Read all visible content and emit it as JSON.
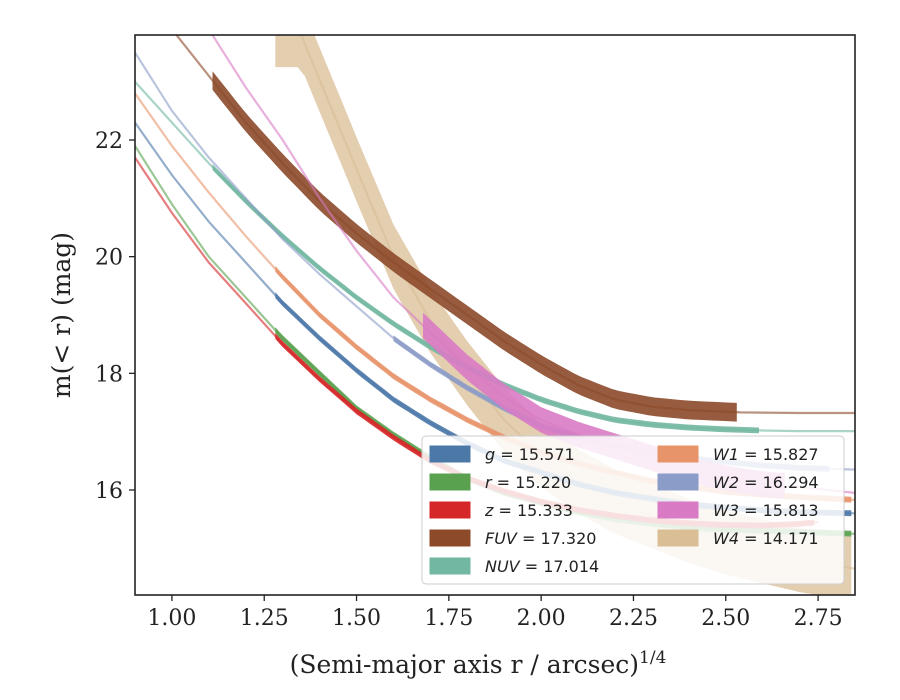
{
  "chart_data": {
    "type": "line",
    "xlabel": "(Semi-major axis r / arcsec)",
    "xlabel_superscript": "1/4",
    "ylabel": "m(< r) (mag)",
    "xlim": [
      0.9,
      2.85
    ],
    "ylim": [
      23.8,
      14.2
    ],
    "y_inverted": true,
    "x_ticks": [
      1.0,
      1.25,
      1.5,
      1.75,
      2.0,
      2.25,
      2.5,
      2.75
    ],
    "x_tick_labels": [
      "1.00",
      "1.25",
      "1.50",
      "1.75",
      "2.00",
      "2.25",
      "2.50",
      "2.75"
    ],
    "y_ticks": [
      16,
      18,
      20,
      22
    ],
    "y_tick_labels": [
      "16",
      "18",
      "20",
      "22"
    ],
    "grid": false,
    "legend_position": "lower-right",
    "series": [
      {
        "name": "g",
        "label_value": "= 15.571",
        "color": "#4c78a8",
        "line": [
          [
            0.9,
            22.3
          ],
          [
            1.0,
            21.4
          ],
          [
            1.1,
            20.6
          ],
          [
            1.2,
            19.9
          ],
          [
            1.3,
            19.2
          ],
          [
            1.4,
            18.6
          ],
          [
            1.5,
            18.05
          ],
          [
            1.6,
            17.55
          ],
          [
            1.7,
            17.15
          ],
          [
            1.8,
            16.8
          ],
          [
            1.9,
            16.5
          ],
          [
            2.0,
            16.3
          ],
          [
            2.1,
            16.1
          ],
          [
            2.2,
            15.95
          ],
          [
            2.3,
            15.85
          ],
          [
            2.4,
            15.75
          ],
          [
            2.5,
            15.7
          ],
          [
            2.6,
            15.65
          ],
          [
            2.7,
            15.62
          ],
          [
            2.85,
            15.6
          ]
        ],
        "band": [
          1.28,
          2.85
        ]
      },
      {
        "name": "r",
        "label_value": "= 15.220",
        "color": "#59a14f",
        "line": [
          [
            0.9,
            21.9
          ],
          [
            1.0,
            20.9
          ],
          [
            1.1,
            20.0
          ],
          [
            1.2,
            19.3
          ],
          [
            1.3,
            18.6
          ],
          [
            1.4,
            18.0
          ],
          [
            1.5,
            17.4
          ],
          [
            1.6,
            16.95
          ],
          [
            1.7,
            16.55
          ],
          [
            1.8,
            16.2
          ],
          [
            1.9,
            15.95
          ],
          [
            2.0,
            15.78
          ],
          [
            2.1,
            15.62
          ],
          [
            2.2,
            15.5
          ],
          [
            2.3,
            15.42
          ],
          [
            2.4,
            15.36
          ],
          [
            2.5,
            15.32
          ],
          [
            2.6,
            15.3
          ],
          [
            2.7,
            15.28
          ],
          [
            2.85,
            15.25
          ]
        ],
        "band": [
          1.28,
          2.85
        ]
      },
      {
        "name": "z",
        "label_value": "= 15.333",
        "color": "#d62728",
        "line": [
          [
            0.9,
            21.7
          ],
          [
            1.0,
            20.75
          ],
          [
            1.1,
            19.9
          ],
          [
            1.2,
            19.2
          ],
          [
            1.3,
            18.5
          ],
          [
            1.4,
            17.9
          ],
          [
            1.5,
            17.35
          ],
          [
            1.6,
            16.9
          ],
          [
            1.7,
            16.5
          ],
          [
            1.8,
            16.2
          ],
          [
            1.9,
            15.98
          ],
          [
            2.0,
            15.8
          ],
          [
            2.1,
            15.66
          ],
          [
            2.2,
            15.56
          ],
          [
            2.3,
            15.48
          ],
          [
            2.4,
            15.43
          ],
          [
            2.5,
            15.4
          ],
          [
            2.6,
            15.39
          ],
          [
            2.7,
            15.42
          ],
          [
            2.75,
            15.45
          ]
        ],
        "band": [
          1.28,
          2.75
        ]
      },
      {
        "name": "FUV",
        "label_value": "= 17.320",
        "color": "#8c4a2a",
        "line": [
          [
            1.0,
            23.9
          ],
          [
            1.1,
            23.1
          ],
          [
            1.2,
            22.3
          ],
          [
            1.3,
            21.6
          ],
          [
            1.4,
            20.95
          ],
          [
            1.5,
            20.4
          ],
          [
            1.6,
            19.9
          ],
          [
            1.7,
            19.45
          ],
          [
            1.8,
            19.0
          ],
          [
            1.9,
            18.55
          ],
          [
            2.0,
            18.15
          ],
          [
            2.1,
            17.8
          ],
          [
            2.2,
            17.55
          ],
          [
            2.3,
            17.43
          ],
          [
            2.4,
            17.37
          ],
          [
            2.54,
            17.33
          ],
          [
            2.7,
            17.32
          ],
          [
            2.85,
            17.32
          ]
        ],
        "band": [
          1.11,
          2.54
        ]
      },
      {
        "name": "NUV",
        "label_value": "= 17.014",
        "color": "#72b7a1",
        "line": [
          [
            0.9,
            23.0
          ],
          [
            1.0,
            22.3
          ],
          [
            1.1,
            21.6
          ],
          [
            1.2,
            20.95
          ],
          [
            1.3,
            20.35
          ],
          [
            1.4,
            19.8
          ],
          [
            1.5,
            19.3
          ],
          [
            1.6,
            18.85
          ],
          [
            1.7,
            18.45
          ],
          [
            1.8,
            18.1
          ],
          [
            1.9,
            17.8
          ],
          [
            2.0,
            17.55
          ],
          [
            2.1,
            17.35
          ],
          [
            2.2,
            17.2
          ],
          [
            2.3,
            17.12
          ],
          [
            2.4,
            17.07
          ],
          [
            2.5,
            17.04
          ],
          [
            2.6,
            17.02
          ],
          [
            2.7,
            17.01
          ],
          [
            2.85,
            17.01
          ]
        ],
        "band": [
          1.11,
          2.59
        ]
      },
      {
        "name": "W1",
        "label_value": "= 15.827",
        "color": "#e8946a",
        "line": [
          [
            0.9,
            22.8
          ],
          [
            1.0,
            21.9
          ],
          [
            1.1,
            21.1
          ],
          [
            1.2,
            20.35
          ],
          [
            1.3,
            19.65
          ],
          [
            1.4,
            19.0
          ],
          [
            1.5,
            18.45
          ],
          [
            1.6,
            17.95
          ],
          [
            1.7,
            17.55
          ],
          [
            1.8,
            17.2
          ],
          [
            1.9,
            16.9
          ],
          [
            2.0,
            16.65
          ],
          [
            2.1,
            16.45
          ],
          [
            2.2,
            16.3
          ],
          [
            2.3,
            16.15
          ],
          [
            2.4,
            16.05
          ],
          [
            2.5,
            15.97
          ],
          [
            2.6,
            15.92
          ],
          [
            2.7,
            15.88
          ],
          [
            2.85,
            15.83
          ]
        ],
        "band": [
          1.28,
          2.85
        ]
      },
      {
        "name": "W2",
        "label_value": "= 16.294",
        "color": "#8c9cc8",
        "line": [
          [
            0.9,
            23.5
          ],
          [
            1.0,
            22.5
          ],
          [
            1.1,
            21.7
          ],
          [
            1.2,
            21.0
          ],
          [
            1.3,
            20.3
          ],
          [
            1.4,
            19.7
          ],
          [
            1.5,
            19.15
          ],
          [
            1.6,
            18.6
          ],
          [
            1.7,
            18.15
          ],
          [
            1.8,
            17.75
          ],
          [
            1.9,
            17.4
          ],
          [
            2.0,
            17.1
          ],
          [
            2.1,
            16.9
          ],
          [
            2.2,
            16.75
          ],
          [
            2.3,
            16.65
          ],
          [
            2.4,
            16.55
          ],
          [
            2.5,
            16.48
          ],
          [
            2.6,
            16.42
          ],
          [
            2.7,
            16.38
          ],
          [
            2.85,
            16.35
          ]
        ],
        "band": [
          1.6,
          2.79
        ]
      },
      {
        "name": "W3",
        "label_value": "= 15.813",
        "color": "#d97bc4",
        "line": [
          [
            1.1,
            23.9
          ],
          [
            1.2,
            22.9
          ],
          [
            1.3,
            22.0
          ],
          [
            1.4,
            21.0
          ],
          [
            1.5,
            20.1
          ],
          [
            1.6,
            19.3
          ],
          [
            1.7,
            18.7
          ],
          [
            1.8,
            18.1
          ],
          [
            1.9,
            17.6
          ],
          [
            2.0,
            17.2
          ],
          [
            2.1,
            16.95
          ],
          [
            2.2,
            16.75
          ],
          [
            2.3,
            16.55
          ],
          [
            2.4,
            16.35
          ],
          [
            2.5,
            16.2
          ],
          [
            2.6,
            16.1
          ],
          [
            2.7,
            16.05
          ],
          [
            2.85,
            15.95
          ]
        ],
        "band": [
          1.68,
          2.66
        ]
      },
      {
        "name": "W4",
        "label_value": "= 14.171",
        "color": "#d9be96",
        "line": [
          [
            1.35,
            23.8
          ],
          [
            1.5,
            21.5
          ],
          [
            1.6,
            20.0
          ],
          [
            1.7,
            18.9
          ],
          [
            1.8,
            18.0
          ],
          [
            1.9,
            17.2
          ],
          [
            2.0,
            16.6
          ],
          [
            2.1,
            16.15
          ],
          [
            2.2,
            15.8
          ],
          [
            2.3,
            15.55
          ],
          [
            2.4,
            15.3
          ],
          [
            2.5,
            15.1
          ],
          [
            2.6,
            14.95
          ],
          [
            2.7,
            14.8
          ],
          [
            2.85,
            14.65
          ]
        ],
        "band": [
          1.28,
          2.85
        ]
      }
    ]
  }
}
